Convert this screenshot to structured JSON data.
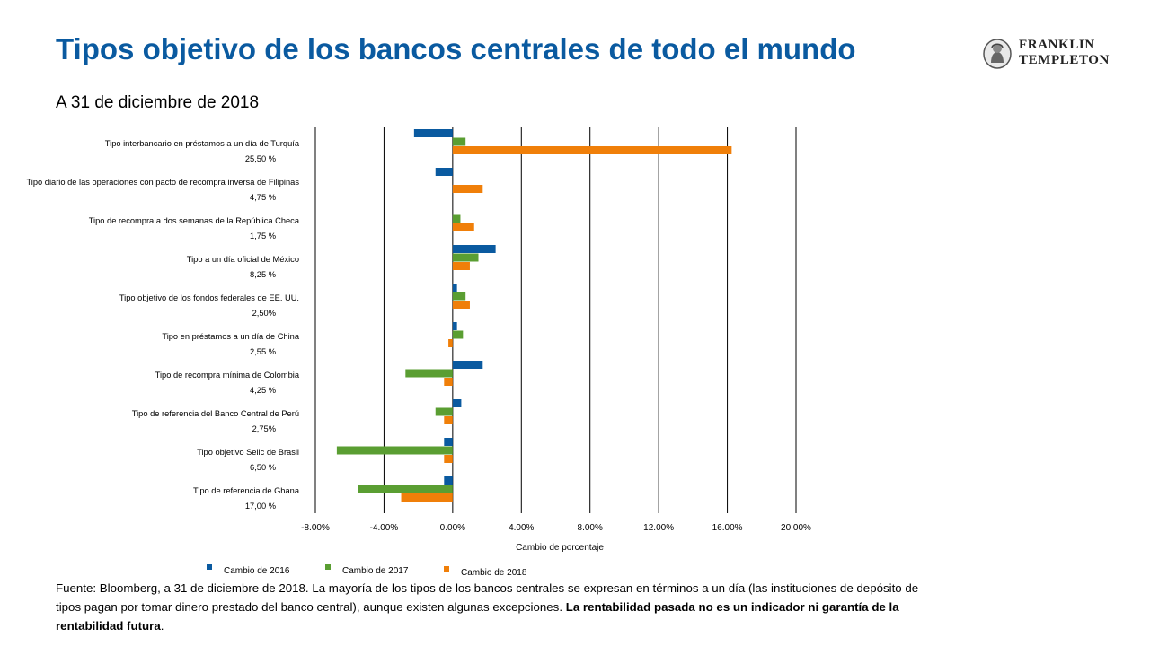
{
  "header": {
    "title": "Tipos objetivo de los bancos centrales de todo el mundo",
    "subtitle": "A 31 de diciembre de 2018",
    "logo_line1": "FRANKLIN",
    "logo_line2": "TEMPLETON"
  },
  "colors": {
    "series_2016": "#0a5aa0",
    "series_2017": "#5a9e32",
    "series_2018": "#f07f09",
    "title": "#0a5aa0"
  },
  "chart_data": {
    "type": "bar",
    "orientation": "horizontal",
    "categories": [
      {
        "name": "Tipo interbancario en préstamos a un día de Turquía",
        "rate": "25,50 %"
      },
      {
        "name": "Tipo diario de las operaciones con pacto de recompra inversa de Filipinas",
        "rate": "4,75 %"
      },
      {
        "name": "Tipo de recompra a dos semanas de la República Checa",
        "rate": "1,75 %"
      },
      {
        "name": "Tipo a un día oficial de México",
        "rate": "8,25 %"
      },
      {
        "name": "Tipo objetivo de los fondos federales de EE. UU.",
        "rate": "2,50%"
      },
      {
        "name": "Tipo en préstamos a un día de China",
        "rate": "2,55 %"
      },
      {
        "name": "Tipo de recompra mínima de Colombia",
        "rate": "4,25 %"
      },
      {
        "name": "Tipo de referencia del Banco Central de Perú",
        "rate": "2,75%"
      },
      {
        "name": "Tipo objetivo Selic de Brasil",
        "rate": "6,50 %"
      },
      {
        "name": "Tipo de referencia de Ghana",
        "rate": "17,00 %"
      }
    ],
    "series": [
      {
        "name": "Cambio de 2016",
        "values": [
          -2.25,
          -1.0,
          0.0,
          2.5,
          0.25,
          0.25,
          1.75,
          0.5,
          -0.5,
          -0.5
        ]
      },
      {
        "name": "Cambio de 2017",
        "values": [
          0.75,
          0.0,
          0.45,
          1.5,
          0.75,
          0.6,
          -2.75,
          -1.0,
          -6.75,
          -5.5
        ]
      },
      {
        "name": "Cambio de 2018",
        "values": [
          16.25,
          1.75,
          1.25,
          1.0,
          1.0,
          -0.25,
          -0.5,
          -0.5,
          -0.5,
          -3.0
        ]
      }
    ],
    "xlim": [
      -8,
      20
    ],
    "xticks": [
      "-8.00%",
      "-4.00%",
      "0.00%",
      "4.00%",
      "8.00%",
      "12.00%",
      "16.00%",
      "20.00%"
    ],
    "xlabel": "Cambio de porcentaje",
    "grid": "vertical gridlines",
    "legend": "bottom"
  },
  "footnote": {
    "text": "Fuente: Bloomberg, a 31 de diciembre de 2018. La mayoría de los tipos de los bancos centrales se expresan en términos a un día (las instituciones de depósito de tipos pagan por tomar dinero prestado del banco central), aunque existen algunas excepciones. ",
    "bold": "La rentabilidad pasada no es un indicador ni garantía de la rentabilidad futura",
    "end": "."
  }
}
